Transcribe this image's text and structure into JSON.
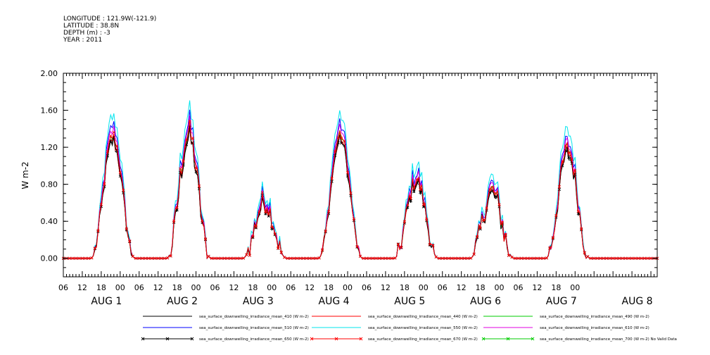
{
  "header": {
    "longitude": "LONGITUDE : 121.9W(-121.9)",
    "latitude": "LATITUDE : 38.8N",
    "depth": "DEPTH (m) : -3",
    "year": "YEAR : 2011"
  },
  "chart_data": {
    "type": "line",
    "ylabel": "W m-2",
    "ylim": [
      -0.2,
      2.0
    ],
    "yticks": [
      "2.00",
      "1.60",
      "1.20",
      "0.80",
      "0.40",
      "0.00"
    ],
    "ytick_values": [
      2.0,
      1.6,
      1.2,
      0.8,
      0.4,
      0.0
    ],
    "xlim_hours": [
      0,
      188
    ],
    "xtick_labels": [
      "06",
      "12",
      "18",
      "00",
      "06",
      "12",
      "18",
      "00",
      "06",
      "12",
      "18",
      "00",
      "06",
      "12",
      "18",
      "00",
      "06",
      "12",
      "18",
      "00",
      "06",
      "12",
      "18",
      "00",
      "06",
      "12",
      "18",
      "00"
    ],
    "day_labels": [
      "AUG  1",
      "AUG  2",
      "AUG  3",
      "AUG  4",
      "AUG  5",
      "AUG  6",
      "AUG  7",
      "AUG  8"
    ],
    "grid": false,
    "legend_placement": "bottom",
    "series": [
      {
        "name": "sea_surface_downwelling_irradiance_mean_410 (W m-2)",
        "color": "#000000",
        "marker": "none",
        "scale": 0.95
      },
      {
        "name": "sea_surface_downwelling_irradiance_mean_440 (W m-2)",
        "color": "#ff0000",
        "marker": "none",
        "scale": 0.97
      },
      {
        "name": "sea_surface_downwelling_irradiance_mean_490 (W m-2)",
        "color": "#00cc00",
        "marker": "none",
        "scale": 1.0
      },
      {
        "name": "sea_surface_downwelling_irradiance_mean_510 (W m-2)",
        "color": "#0000ff",
        "marker": "none",
        "scale": 1.08
      },
      {
        "name": "sea_surface_downwelling_irradiance_mean_550 (W m-2)",
        "color": "#00e5ee",
        "marker": "none",
        "scale": 1.16
      },
      {
        "name": "sea_surface_downwelling_irradiance_mean_610 (W m-2)",
        "color": "#e000e0",
        "marker": "none",
        "scale": 1.04
      },
      {
        "name": "sea_surface_downwelling_irradiance_mean_650 (W m-2)",
        "color": "#000000",
        "marker": "x",
        "scale": 0.96
      },
      {
        "name": "sea_surface_downwelling_irradiance_mean_670 (W m-2)",
        "color": "#ff0000",
        "marker": "x",
        "scale": 1.0
      },
      {
        "name": "sea_surface_downwelling_irradiance_mean_700 (W m-2) No Valid Data",
        "color": "#00cc00",
        "marker": "x",
        "scale": 0
      }
    ],
    "days": [
      {
        "noon_hour": 15.7,
        "peak": 1.32,
        "noise": 0.08
      },
      {
        "noon_hour": 39.7,
        "peak": 1.35,
        "noise": 0.14
      },
      {
        "noon_hour": 63.7,
        "peak": 0.62,
        "noise": 0.12
      },
      {
        "noon_hour": 87.7,
        "peak": 1.34,
        "noise": 0.06
      },
      {
        "noon_hour": 111.7,
        "peak": 0.86,
        "noise": 0.1
      },
      {
        "noon_hour": 135.7,
        "peak": 0.72,
        "noise": 0.14
      },
      {
        "noon_hour": 159.7,
        "peak": 1.18,
        "noise": 0.1
      }
    ]
  }
}
